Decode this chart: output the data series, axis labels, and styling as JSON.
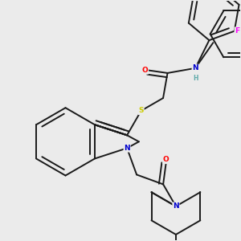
{
  "bg_color": "#ebebeb",
  "bond_color": "#1a1a1a",
  "atom_colors": {
    "O": "#ff0000",
    "N": "#0000cd",
    "S": "#cccc00",
    "F": "#ff00ff",
    "H": "#5faaaa"
  },
  "lw": 1.4
}
